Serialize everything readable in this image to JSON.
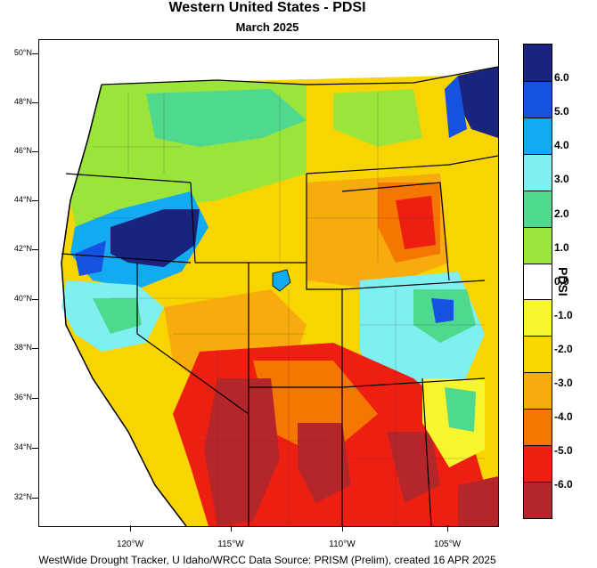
{
  "title": "Western United States - PDSI",
  "subtitle": "March 2025",
  "footer": "WestWide Drought Tracker, U Idaho/WRCC Data Source: PRISM (Prelim), created 16 APR 2025",
  "colorbar": {
    "title": "PDSI",
    "labels": [
      "6.0",
      "5.0",
      "4.0",
      "3.0",
      "2.0",
      "1.0",
      "0.0",
      "-1.0",
      "-2.0",
      "-3.0",
      "-4.0",
      "-5.0",
      "-6.0"
    ],
    "colors": [
      "#1a237e",
      "#1552e0",
      "#12aaf0",
      "#7ff0f2",
      "#4fd98e",
      "#9be53a",
      "#ffffff",
      "#f7f52e",
      "#f8d500",
      "#f7ab0c",
      "#f57600",
      "#ee1f10",
      "#b5262a"
    ]
  },
  "lat_labels": [
    "50°N",
    "48°N",
    "46°N",
    "44°N",
    "42°N",
    "40°N",
    "38°N",
    "36°N",
    "34°N",
    "32°N"
  ],
  "lon_labels": [
    "120°W",
    "115°W",
    "110°W",
    "105°W"
  ],
  "map": {
    "regions": [
      {
        "name": "northwest-coast",
        "color": "#9be53a"
      },
      {
        "name": "oregon-interior-wet",
        "color": "#1552e0"
      },
      {
        "name": "oregon-core-very-wet",
        "color": "#1a237e"
      },
      {
        "name": "northern-california",
        "color": "#12aaf0"
      },
      {
        "name": "nevada-dry",
        "color": "#f8d500"
      },
      {
        "name": "southwest-severe",
        "color": "#ee1f10"
      },
      {
        "name": "southwest-extreme",
        "color": "#b5262a"
      },
      {
        "name": "wyoming-dry",
        "color": "#f57600"
      },
      {
        "name": "colorado-wet",
        "color": "#12aaf0"
      },
      {
        "name": "montana-wet",
        "color": "#1a237e"
      }
    ]
  }
}
